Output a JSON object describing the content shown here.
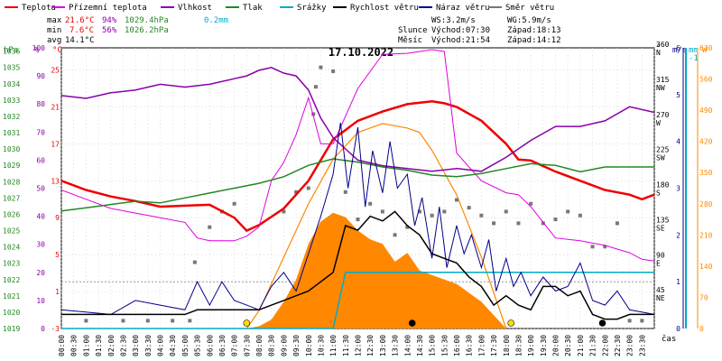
{
  "chart_data": {
    "type": "line",
    "title": "17.10.2022",
    "legend": [
      {
        "name": "Teplota",
        "color": "#ee0000"
      },
      {
        "name": "Přízemní teplota",
        "color": "#dd00dd"
      },
      {
        "name": "Vlhkost",
        "color": "#8800aa"
      },
      {
        "name": "Tlak",
        "color": "#228822"
      },
      {
        "name": "Srážky",
        "color": "#00aacc"
      },
      {
        "name": "Rychlost větru",
        "color": "#000000"
      },
      {
        "name": "Náraz větru",
        "color": "#000088"
      },
      {
        "name": "Směr větru",
        "color": "#777777"
      }
    ],
    "stats": {
      "max": {
        "label": "max",
        "temp": "21.6°C",
        "hum": "94%",
        "press": "1029.4hPa",
        "rain": "0.2mm"
      },
      "min": {
        "label": "min",
        "temp": "7.6°C",
        "hum": "56%",
        "press": "1026.2hPa"
      },
      "avg": {
        "label": "avg",
        "temp": "14.1°C"
      }
    },
    "info": {
      "ws": "WS:3.2m/s",
      "wg": "WG:5.9m/s",
      "sun_label": "Slunce",
      "sunrise": "Východ:07:30",
      "sunset": "Západ:18:13",
      "moon_label": "Měsíc",
      "moonrise": "Východ:21:54",
      "moonset": "Západ:14:12"
    },
    "axes": {
      "hpa": {
        "unit": "hPa",
        "ticks": [
          "1036",
          "1035",
          "1034",
          "1033",
          "1032",
          "1031",
          "1030",
          "1029",
          "1028",
          "1027",
          "1026",
          "1025",
          "1024",
          "1023",
          "1022",
          "1021",
          "1020",
          "1019"
        ],
        "range": [
          1019,
          1036.2
        ]
      },
      "pct": {
        "unit": "%",
        "ticks": [
          "100",
          "90",
          "80",
          "70",
          "60",
          "50",
          "40",
          "30",
          "20",
          "10",
          "0"
        ],
        "range": [
          0,
          100
        ]
      },
      "temp": {
        "unit": "°C",
        "ticks": [
          "25",
          "21",
          "17",
          "13",
          "9",
          "5",
          "1",
          "-3"
        ],
        "range": [
          -3,
          27.4
        ]
      },
      "dir": {
        "unit": "°",
        "ticks": [
          {
            "deg": "360",
            "name": "N"
          },
          {
            "deg": "315",
            "name": "NW"
          },
          {
            "deg": "270",
            "name": "W"
          },
          {
            "deg": "225",
            "name": "SW"
          },
          {
            "deg": "180",
            "name": "S"
          },
          {
            "deg": "135",
            "name": "SE"
          },
          {
            "deg": "90",
            "name": "E"
          },
          {
            "deg": "45",
            "name": "NE"
          }
        ],
        "range": [
          0,
          360
        ]
      },
      "ms": {
        "unit": "m/s",
        "ticks": [
          "6",
          "5",
          "4",
          "3",
          "2",
          "1",
          "0"
        ],
        "range": [
          0,
          6
        ]
      },
      "mm": {
        "unit": "mm",
        "top": "-1"
      },
      "w": {
        "unit": "W",
        "ticks": [
          "630",
          "560",
          "490",
          "420",
          "350",
          "280",
          "210",
          "140",
          "70",
          "0"
        ],
        "range": [
          0,
          630
        ]
      },
      "x": {
        "unit": "čas",
        "ticks": [
          "00:00",
          "00:30",
          "01:00",
          "01:30",
          "02:00",
          "02:30",
          "03:00",
          "03:30",
          "04:00",
          "04:30",
          "05:00",
          "05:30",
          "06:00",
          "06:30",
          "07:00",
          "07:30",
          "08:00",
          "08:30",
          "09:00",
          "09:30",
          "10:00",
          "10:30",
          "11:00",
          "11:30",
          "12:00",
          "12:30",
          "13:00",
          "13:30",
          "14:00",
          "14:30",
          "15:00",
          "15:30",
          "16:00",
          "16:30",
          "17:00",
          "17:30",
          "18:00",
          "18:30",
          "19:00",
          "19:30",
          "20:00",
          "20:30",
          "21:00",
          "21:30",
          "22:00",
          "22:30",
          "23:00",
          "23:30"
        ],
        "range_hours": [
          0,
          24
        ]
      }
    },
    "series": [
      {
        "name": "Teplota",
        "axis": "temp",
        "color": "#ee0000",
        "x": [
          0,
          1,
          2,
          3,
          4,
          5,
          6,
          7,
          7.5,
          8,
          9,
          10,
          11,
          12,
          13,
          14,
          15,
          15.5,
          16,
          17,
          18,
          18.5,
          19,
          20,
          21,
          22,
          23,
          23.5,
          24
        ],
        "values": [
          13,
          12,
          11.3,
          10.8,
          10.2,
          10.3,
          10.4,
          9.0,
          7.6,
          8.2,
          10,
          13,
          17.5,
          19.5,
          20.5,
          21.3,
          21.6,
          21.4,
          21,
          19.5,
          17,
          15.3,
          15.2,
          14,
          13,
          12,
          11.5,
          11,
          11.5
        ]
      },
      {
        "name": "Přízemní teplota",
        "axis": "temp",
        "color": "#dd00dd",
        "x": [
          0,
          1,
          2,
          3,
          4,
          5,
          5.5,
          6,
          7,
          7.5,
          8,
          8.5,
          9,
          9.5,
          10,
          10.5,
          11,
          12,
          13,
          14,
          15,
          15.5,
          16,
          17,
          18,
          18.5,
          19,
          20,
          21,
          22,
          23,
          23.5,
          24
        ],
        "values": [
          12,
          11,
          10,
          9.5,
          9,
          8.5,
          6.8,
          6.5,
          6.5,
          7,
          8,
          13,
          15,
          18,
          22,
          17,
          17,
          23,
          26.7,
          26.8,
          27.2,
          27,
          16,
          13,
          11.7,
          11.5,
          10.2,
          6.8,
          6.5,
          6,
          5.2,
          4.5,
          4.3
        ]
      },
      {
        "name": "Vlhkost",
        "axis": "pct",
        "color": "#8800aa",
        "x": [
          0,
          1,
          2,
          3,
          4,
          5,
          6,
          7,
          7.5,
          8,
          8.5,
          9,
          9.5,
          10,
          10.5,
          11,
          11.5,
          12,
          13,
          14,
          15,
          16,
          17,
          18,
          19,
          20,
          21,
          22,
          23,
          24
        ],
        "values": [
          83,
          82,
          84,
          85,
          87,
          86,
          87,
          89,
          90,
          92,
          93,
          91,
          90,
          85,
          75,
          68,
          64,
          60,
          58,
          57,
          56,
          57,
          56,
          61,
          67,
          72,
          72,
          74,
          79,
          77
        ]
      },
      {
        "name": "Tlak",
        "axis": "hpa",
        "color": "#228822",
        "x": [
          0,
          1,
          2,
          3,
          4,
          5,
          6,
          7,
          8,
          9,
          10,
          11,
          12,
          13,
          14,
          15,
          16,
          17,
          18,
          19,
          20,
          21,
          22,
          23,
          24
        ],
        "values": [
          1026.2,
          1026.4,
          1026.6,
          1026.8,
          1026.7,
          1027.0,
          1027.3,
          1027.6,
          1027.9,
          1028.3,
          1029.0,
          1029.4,
          1029.2,
          1028.9,
          1028.7,
          1028.4,
          1028.3,
          1028.5,
          1028.8,
          1029.1,
          1029.0,
          1028.6,
          1028.9,
          1028.9,
          1028.9
        ]
      },
      {
        "name": "Srážky",
        "axis": "pct",
        "color": "#00aacc",
        "x": [
          0,
          11,
          11.5,
          24
        ],
        "values": [
          0,
          0,
          20,
          20
        ]
      }
    ],
    "solar_radiation": {
      "name": "Sluneční záření",
      "axis": "w",
      "color": "#ff8800",
      "x": [
        7.5,
        8,
        8.5,
        9,
        9.5,
        10,
        10.5,
        11,
        11.5,
        12,
        12.5,
        13,
        13.5,
        14,
        14.5,
        15,
        15.5,
        16,
        16.5,
        17,
        17.5,
        18
      ],
      "values": [
        0,
        5,
        20,
        60,
        110,
        190,
        240,
        260,
        250,
        220,
        200,
        190,
        150,
        170,
        130,
        120,
        110,
        100,
        80,
        60,
        30,
        0
      ]
    },
    "theoretical_radiation": {
      "axis": "w",
      "color": "#ff8800",
      "x": [
        7.5,
        8,
        9,
        10,
        11,
        12,
        13,
        14,
        14.5,
        15,
        16,
        17,
        18
      ],
      "values": [
        0,
        40,
        160,
        280,
        380,
        440,
        460,
        450,
        440,
        400,
        300,
        160,
        0
      ]
    },
    "wind_direction_dots": [
      [
        1,
        10
      ],
      [
        2.5,
        10
      ],
      [
        3.5,
        10
      ],
      [
        4.5,
        10
      ],
      [
        5.2,
        10
      ],
      [
        5.4,
        85
      ],
      [
        6,
        130
      ],
      [
        6.5,
        150
      ],
      [
        7,
        160
      ],
      [
        9,
        150
      ],
      [
        9.5,
        175
      ],
      [
        10,
        180
      ],
      [
        10.2,
        275
      ],
      [
        10.3,
        310
      ],
      [
        10.5,
        335
      ],
      [
        11,
        330
      ],
      [
        11.5,
        175
      ],
      [
        12,
        140
      ],
      [
        12.5,
        160
      ],
      [
        13,
        150
      ],
      [
        13.5,
        120
      ],
      [
        14,
        130
      ],
      [
        14.5,
        150
      ],
      [
        15,
        145
      ],
      [
        15.5,
        150
      ],
      [
        16,
        165
      ],
      [
        16.5,
        155
      ],
      [
        17,
        145
      ],
      [
        17.5,
        135
      ],
      [
        18,
        150
      ],
      [
        18.5,
        135
      ],
      [
        19,
        160
      ],
      [
        19.5,
        135
      ],
      [
        20,
        140
      ],
      [
        20.5,
        150
      ],
      [
        21,
        145
      ],
      [
        21.5,
        105
      ],
      [
        22,
        105
      ],
      [
        22.5,
        135
      ],
      [
        23,
        10
      ],
      [
        23.5,
        10
      ]
    ],
    "wind_speed_ms": {
      "x": [
        0,
        5,
        5.5,
        8,
        9,
        10,
        11,
        11.5,
        12,
        12.5,
        13,
        13.5,
        14,
        14.5,
        15,
        15.5,
        16,
        16.5,
        17,
        17.5,
        18,
        18.5,
        19,
        19.5,
        20,
        20.5,
        21,
        21.5,
        22,
        22.5,
        23,
        24
      ],
      "values": [
        0.3,
        0.3,
        0.4,
        0.4,
        0.6,
        0.8,
        1.2,
        2.2,
        2.1,
        2.4,
        2.3,
        2.5,
        2.2,
        2.0,
        1.6,
        1.5,
        1.4,
        1.1,
        0.9,
        0.5,
        0.7,
        0.5,
        0.4,
        0.9,
        0.9,
        0.7,
        0.8,
        0.3,
        0.2,
        0.2,
        0.3,
        0.3
      ]
    },
    "wind_gust_ms": {
      "x": [
        0,
        2,
        3,
        4,
        5,
        5.5,
        6,
        6.5,
        7,
        8,
        8.5,
        9,
        9.5,
        10,
        10.5,
        11,
        11.3,
        11.6,
        12,
        12.3,
        12.6,
        13,
        13.3,
        13.6,
        14,
        14.3,
        14.6,
        15,
        15.3,
        15.6,
        16,
        16.3,
        16.6,
        17,
        17.3,
        17.6,
        18,
        18.3,
        18.6,
        19,
        19.5,
        20,
        20.5,
        21,
        21.5,
        22,
        22.5,
        23,
        24
      ],
      "values": [
        0.4,
        0.3,
        0.6,
        0.5,
        0.4,
        1.0,
        0.5,
        1.0,
        0.6,
        0.4,
        0.9,
        1.2,
        0.8,
        1.6,
        2.4,
        3.3,
        4.4,
        3.0,
        4.3,
        2.6,
        3.8,
        2.9,
        4.0,
        3.0,
        3.3,
        2.2,
        2.8,
        1.5,
        2.6,
        1.3,
        2.2,
        1.6,
        2.0,
        1.3,
        1.9,
        0.8,
        1.5,
        0.9,
        1.2,
        0.7,
        1.1,
        0.8,
        0.9,
        1.4,
        0.6,
        0.5,
        0.8,
        0.4,
        0.3
      ]
    },
    "sun_markers": {
      "sunrise_h": 7.5,
      "sunset_h": 18.2,
      "moonset_h": 14.2,
      "moonrise_h": 21.9
    }
  }
}
